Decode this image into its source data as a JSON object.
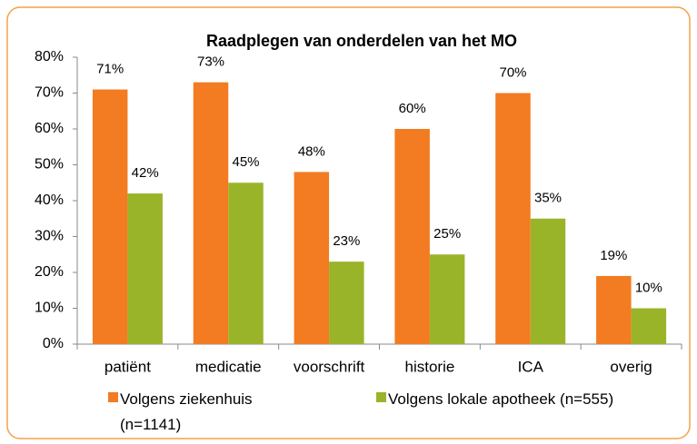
{
  "chart_data": {
    "type": "bar",
    "title": "Raadplegen van onderdelen van het MO",
    "categories": [
      "patiënt",
      "medicatie",
      "voorschrift",
      "historie",
      "ICA",
      "overig"
    ],
    "series": [
      {
        "name": "Volgens ziekenhuis (n=1141)",
        "color": "#f37b21",
        "values": [
          71,
          73,
          48,
          60,
          70,
          19
        ],
        "value_labels": [
          "71%",
          "73%",
          "48%",
          "60%",
          "70%",
          "19%"
        ]
      },
      {
        "name": "Volgens lokale apotheek (n=555)",
        "color": "#9ab42a",
        "values": [
          42,
          45,
          23,
          25,
          35,
          10
        ],
        "value_labels": [
          "42%",
          "45%",
          "23%",
          "25%",
          "35%",
          "10%"
        ]
      }
    ],
    "ylim": [
      0,
      80
    ],
    "yticks": [
      {
        "value": 0,
        "label": "0%"
      },
      {
        "value": 10,
        "label": "10%"
      },
      {
        "value": 20,
        "label": "20%"
      },
      {
        "value": 30,
        "label": "30%"
      },
      {
        "value": 40,
        "label": "40%"
      },
      {
        "value": 50,
        "label": "50%"
      },
      {
        "value": 60,
        "label": "60%"
      },
      {
        "value": 70,
        "label": "70%"
      },
      {
        "value": 80,
        "label": "80%"
      }
    ],
    "legend": "bottom"
  }
}
